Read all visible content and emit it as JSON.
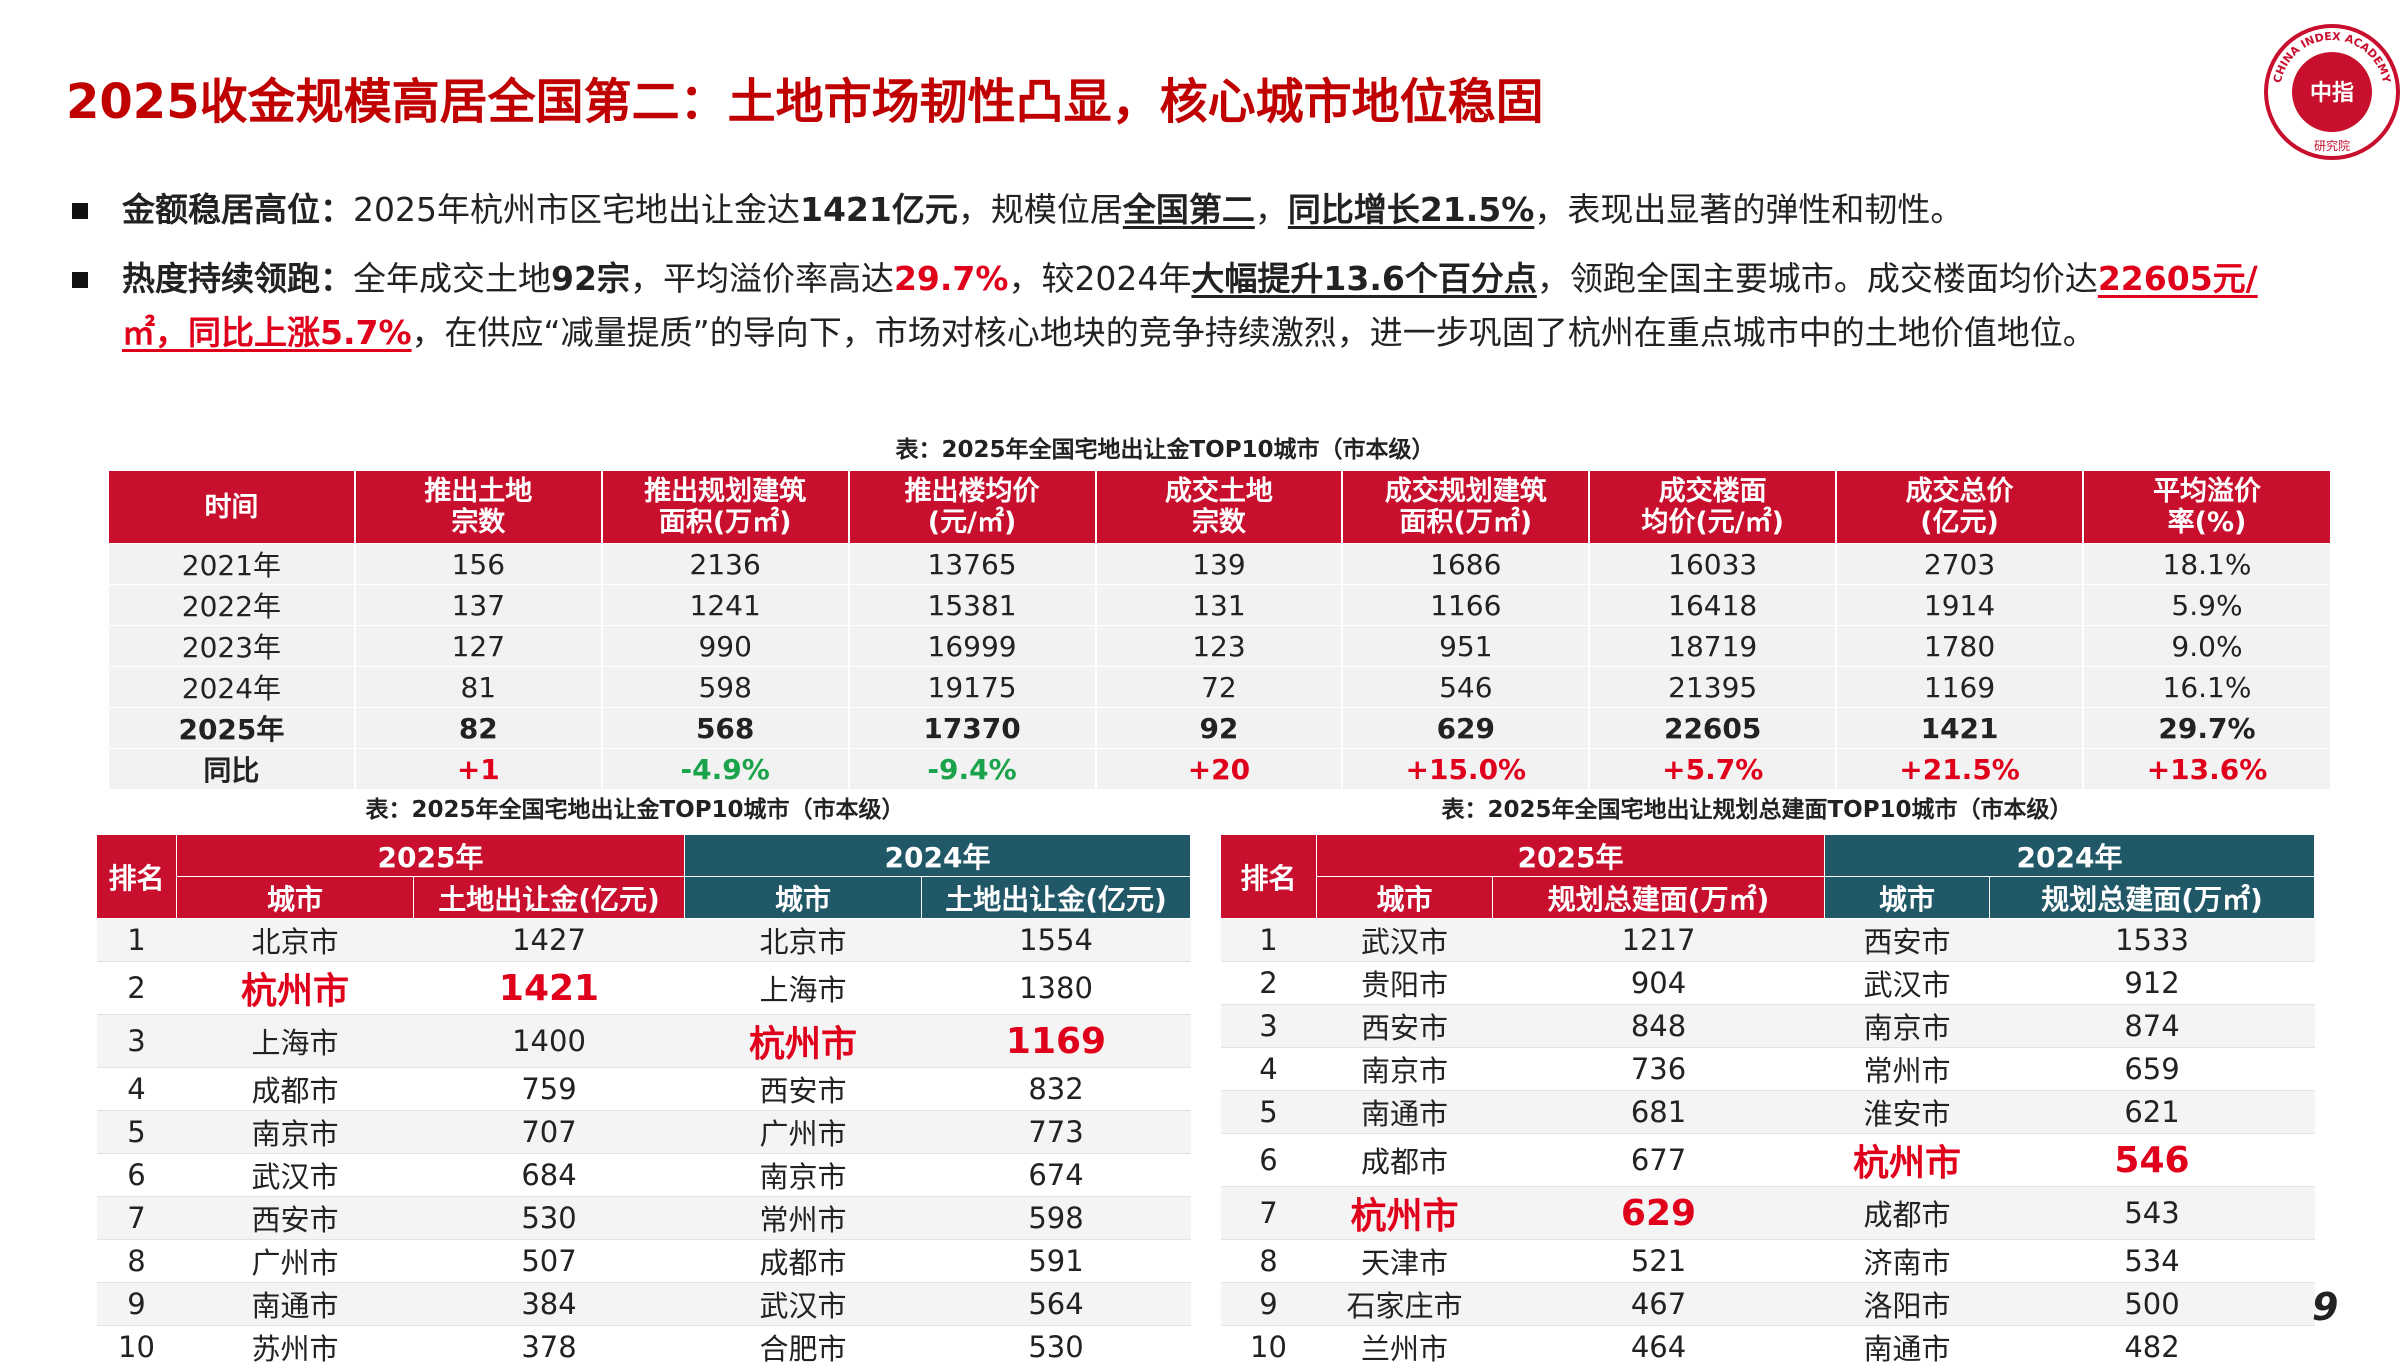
{
  "header": {
    "title": "2025收金规模高居全国第二：土地市场韧性凸显，核心城市地位稳固",
    "logo": {
      "ring": "CHINA INDEX ACADEMY",
      "center": "中指",
      "bottom": "研究院"
    }
  },
  "bullets": [
    [
      {
        "text": "金额稳居高位：",
        "bold": true
      },
      {
        "text": "2025年杭州市区宅地出让金达"
      },
      {
        "text": "1421亿元",
        "bold": true
      },
      {
        "text": "，规模位居"
      },
      {
        "text": "全国第二",
        "bold": true,
        "underline": true
      },
      {
        "text": "，"
      },
      {
        "text": "同比增长21.5%",
        "bold": true,
        "underline": true
      },
      {
        "text": "，表现出显著的弹性和韧性。"
      }
    ],
    [
      {
        "text": "热度持续领跑：",
        "bold": true
      },
      {
        "text": "全年成交土地"
      },
      {
        "text": "92宗",
        "bold": true
      },
      {
        "text": "，平均溢价率高达"
      },
      {
        "text": "29.7%",
        "bold": true,
        "red": true
      },
      {
        "text": "，较2024年"
      },
      {
        "text": "大幅提升13.6个百分点",
        "bold": true,
        "underline": true
      },
      {
        "text": "，领跑全国主要城市。成交楼面均价达"
      },
      {
        "text": "22605元/㎡，同比上涨5.7%",
        "bold": true,
        "red": true,
        "underline": true
      },
      {
        "text": "，在供应“减量提质”的导向下，市场对核心地块的竞争持续激烈，进一步巩固了杭州在重点城市中的土地价值地位。"
      }
    ]
  ],
  "summary_table": {
    "caption": "表：2025年全国宅地出让金TOP10城市（市本级）",
    "headers": [
      "时间",
      "推出土地\n宗数",
      "推出规划建筑\n面积(万㎡)",
      "推出楼均价\n(元/㎡)",
      "成交土地\n宗数",
      "成交规划建筑\n面积(万㎡)",
      "成交楼面\n均价(元/㎡)",
      "成交总价\n(亿元)",
      "平均溢价\n率(%)"
    ],
    "rows": [
      [
        "2021年",
        156,
        2136,
        13765,
        139,
        1686,
        16033,
        2703,
        "18.1%"
      ],
      [
        "2022年",
        137,
        1241,
        15381,
        131,
        1166,
        16418,
        1914,
        "5.9%"
      ],
      [
        "2023年",
        127,
        990,
        16999,
        123,
        951,
        18719,
        1780,
        "9.0%"
      ],
      [
        "2024年",
        81,
        598,
        19175,
        72,
        546,
        21395,
        1169,
        "16.1%"
      ],
      [
        "2025年",
        82,
        568,
        17370,
        92,
        629,
        22605,
        1421,
        "29.7%"
      ],
      [
        "同比",
        "+1",
        "-4.9%",
        "-9.4%",
        "+20",
        "+15.0%",
        "+5.7%",
        "+21.5%",
        "+13.6%"
      ]
    ],
    "bold_row": 4,
    "delta_row": 5,
    "up_color": "#e0001b",
    "down_color": "#1aa34a"
  },
  "ranking_tables": [
    {
      "caption": "表：2025年全国宅地出让金TOP10城市（市本级）",
      "rank": "排名",
      "years": [
        "2025年",
        "2024年"
      ],
      "cols": [
        "城市",
        "土地出让金(亿元)",
        "城市",
        "土地出让金(亿元)"
      ],
      "rows": [
        [
          1,
          "北京市",
          1427,
          "北京市",
          1554
        ],
        [
          2,
          "杭州市",
          1421,
          "上海市",
          1380
        ],
        [
          3,
          "上海市",
          1400,
          "杭州市",
          1169
        ],
        [
          4,
          "成都市",
          759,
          "西安市",
          832
        ],
        [
          5,
          "南京市",
          707,
          "广州市",
          773
        ],
        [
          6,
          "武汉市",
          684,
          "南京市",
          674
        ],
        [
          7,
          "西安市",
          530,
          "常州市",
          598
        ],
        [
          8,
          "广州市",
          507,
          "成都市",
          591
        ],
        [
          9,
          "南通市",
          384,
          "武汉市",
          564
        ],
        [
          10,
          "苏州市",
          378,
          "合肥市",
          530
        ]
      ],
      "highlight": [
        [
          1,
          1
        ],
        [
          1,
          2
        ],
        [
          2,
          3
        ],
        [
          2,
          4
        ]
      ]
    },
    {
      "caption": "表：2025年全国宅地出让规划总建面TOP10城市（市本级）",
      "rank": "排名",
      "years": [
        "2025年",
        "2024年"
      ],
      "cols": [
        "城市",
        "规划总建面(万㎡)",
        "城市",
        "规划总建面(万㎡)"
      ],
      "rows": [
        [
          1,
          "武汉市",
          1217,
          "西安市",
          1533
        ],
        [
          2,
          "贵阳市",
          904,
          "武汉市",
          912
        ],
        [
          3,
          "西安市",
          848,
          "南京市",
          874
        ],
        [
          4,
          "南京市",
          736,
          "常州市",
          659
        ],
        [
          5,
          "南通市",
          681,
          "淮安市",
          621
        ],
        [
          6,
          "成都市",
          677,
          "杭州市",
          546
        ],
        [
          7,
          "杭州市",
          629,
          "成都市",
          543
        ],
        [
          8,
          "天津市",
          521,
          "济南市",
          534
        ],
        [
          9,
          "石家庄市",
          467,
          "洛阳市",
          500
        ],
        [
          10,
          "兰州市",
          464,
          "南通市",
          482
        ]
      ],
      "highlight": [
        [
          6,
          1
        ],
        [
          6,
          2
        ],
        [
          5,
          3
        ],
        [
          5,
          4
        ]
      ]
    }
  ],
  "page_number": "9"
}
